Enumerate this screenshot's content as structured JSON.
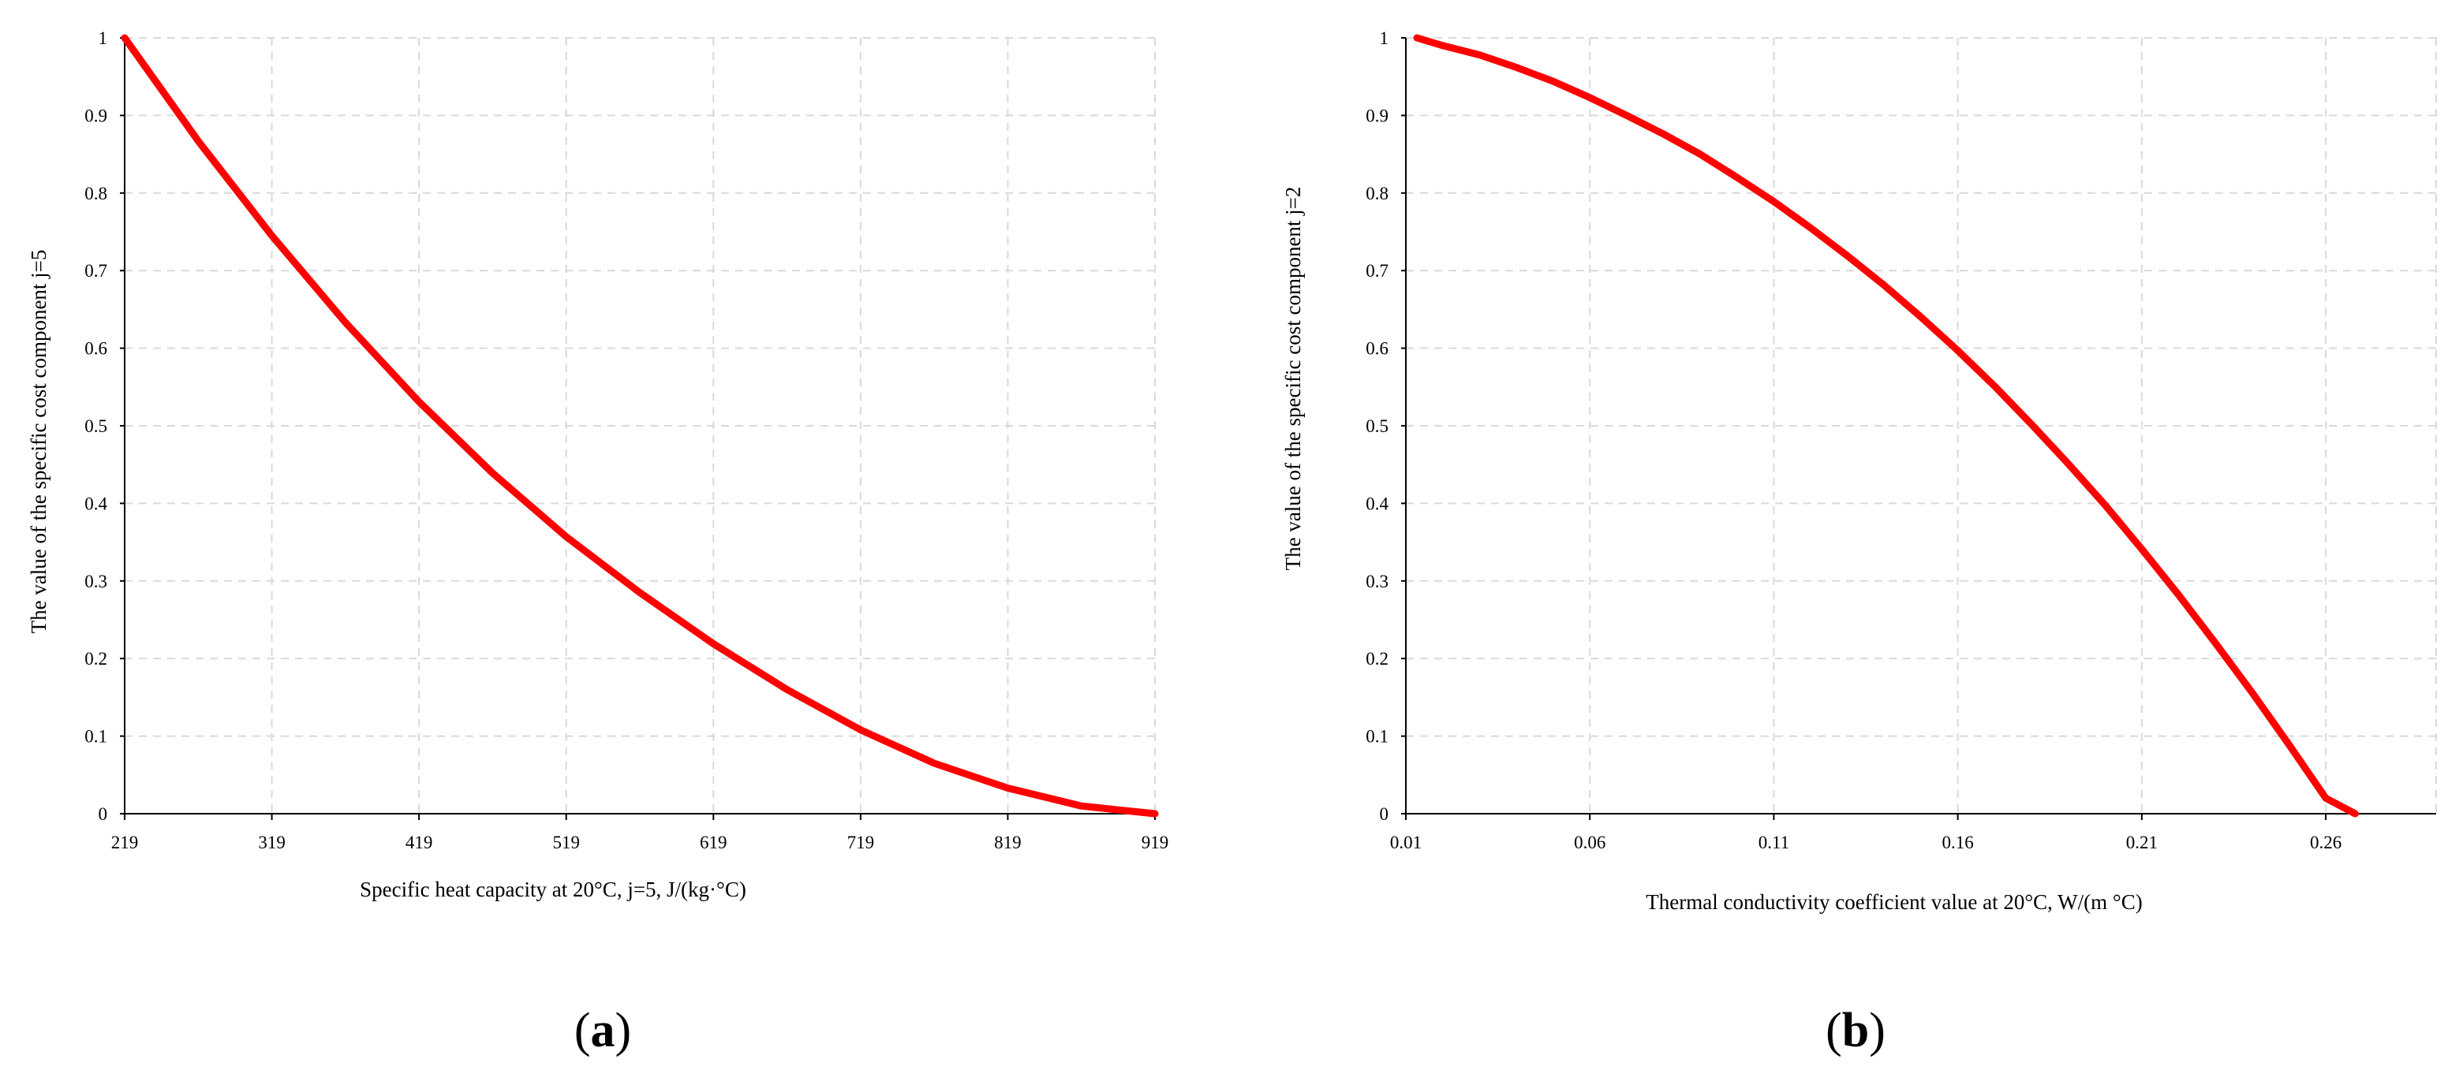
{
  "chart_data": [
    {
      "type": "line",
      "panel_label": {
        "open": "(",
        "letter": "a",
        "close": ")"
      },
      "title": "",
      "xlabel": "Specific heat capacity at 20°C, j=5, J/(kg·°C)",
      "ylabel": "The value of the specific cost component j=5",
      "xlim": [
        219,
        919
      ],
      "ylim": [
        0,
        1
      ],
      "x_ticks": [
        "219",
        "319",
        "419",
        "519",
        "619",
        "719",
        "819",
        "919"
      ],
      "y_ticks": [
        "0",
        "0.1",
        "0.2",
        "0.3",
        "0.4",
        "0.5",
        "0.6",
        "0.7",
        "0.8",
        "0.9",
        "1"
      ],
      "grid": true,
      "line_color": "#ff0000",
      "series": [
        {
          "x": [
            219,
            269,
            319,
            369,
            419,
            469,
            519,
            569,
            619,
            669,
            719,
            769,
            819,
            869,
            919
          ],
          "y": [
            1.0,
            0.867,
            0.745,
            0.633,
            0.531,
            0.439,
            0.357,
            0.285,
            0.219,
            0.16,
            0.108,
            0.065,
            0.033,
            0.01,
            0.0
          ]
        }
      ]
    },
    {
      "type": "line",
      "panel_label": {
        "open": "(",
        "letter": "b",
        "close": ")"
      },
      "title": "",
      "xlabel": "Thermal conductivity coefficient value at 20°C, W/(m °C)",
      "ylabel": "The value of the specific cost component j=2",
      "xlim": [
        0.01,
        0.29
      ],
      "ylim": [
        0,
        1
      ],
      "x_ticks": [
        "0.01",
        "0.06",
        "0.11",
        "0.16",
        "0.21",
        "0.26"
      ],
      "y_ticks": [
        "0",
        "0.1",
        "0.2",
        "0.3",
        "0.4",
        "0.5",
        "0.6",
        "0.7",
        "0.8",
        "0.9",
        "1"
      ],
      "grid": true,
      "line_color": "#ff0000",
      "series": [
        {
          "x": [
            0.013,
            0.02,
            0.03,
            0.04,
            0.05,
            0.06,
            0.07,
            0.08,
            0.09,
            0.1,
            0.11,
            0.12,
            0.13,
            0.14,
            0.15,
            0.16,
            0.17,
            0.18,
            0.19,
            0.2,
            0.21,
            0.22,
            0.23,
            0.24,
            0.25,
            0.26,
            0.268
          ],
          "y": [
            1.0,
            0.99,
            0.978,
            0.962,
            0.944,
            0.923,
            0.9,
            0.876,
            0.85,
            0.82,
            0.789,
            0.755,
            0.719,
            0.681,
            0.64,
            0.597,
            0.551,
            0.502,
            0.451,
            0.398,
            0.341,
            0.282,
            0.22,
            0.156,
            0.089,
            0.02,
            0.0
          ]
        }
      ]
    }
  ]
}
